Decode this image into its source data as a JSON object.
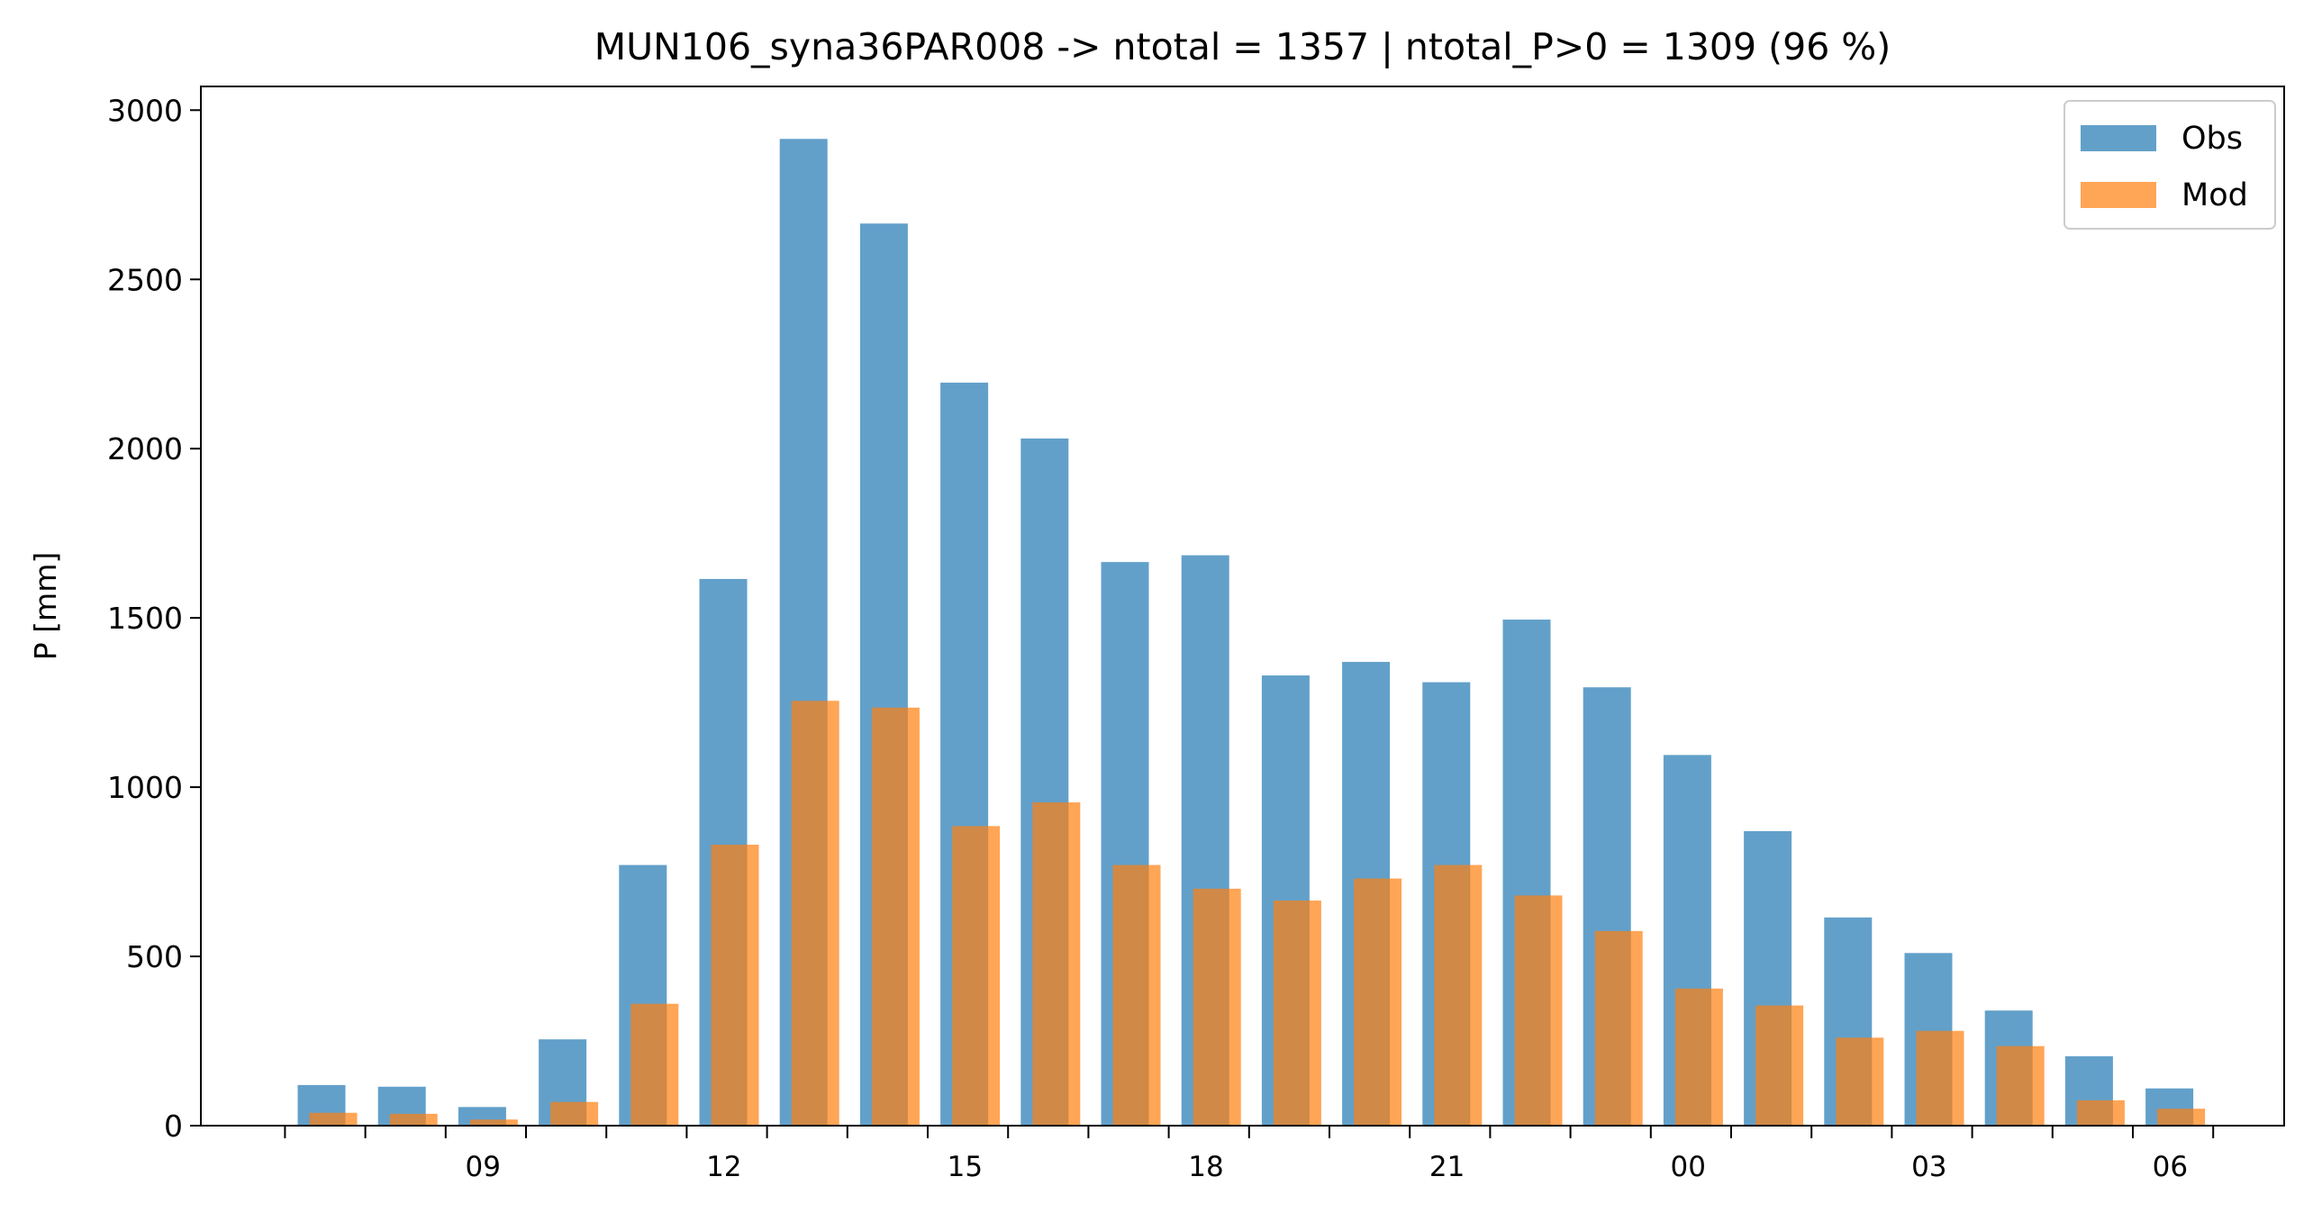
{
  "chart_data": {
    "type": "bar",
    "title": "MUN106_syna36PAR008 -> ntotal = 1357 | ntotal_P>0 = 1309 (96 %)",
    "xlabel": "",
    "ylabel": "P [mm]",
    "ylim": [
      0,
      3070
    ],
    "yticks": [
      0,
      500,
      1000,
      1500,
      2000,
      2500,
      3000
    ],
    "x_start_hour": 8,
    "x_tick_labels": [
      "09",
      "12",
      "15",
      "18",
      "21",
      "00",
      "03",
      "06"
    ],
    "x_tick_label_hours": [
      9,
      12,
      15,
      18,
      21,
      24,
      27,
      30
    ],
    "legend_position": "top-right",
    "grid": false,
    "series": [
      {
        "name": "Obs",
        "color": "#1f77b4",
        "values": [
          120,
          115,
          55,
          255,
          770,
          1615,
          2915,
          2665,
          2195,
          2030,
          1665,
          1685,
          1330,
          1370,
          1310,
          1495,
          1295,
          1095,
          870,
          615,
          510,
          340,
          205,
          110
        ]
      },
      {
        "name": "Mod",
        "color": "#ff7f0e",
        "values": [
          38,
          35,
          18,
          70,
          360,
          830,
          1255,
          1235,
          885,
          955,
          770,
          700,
          665,
          730,
          770,
          680,
          575,
          405,
          355,
          260,
          280,
          235,
          75,
          50
        ]
      }
    ]
  }
}
